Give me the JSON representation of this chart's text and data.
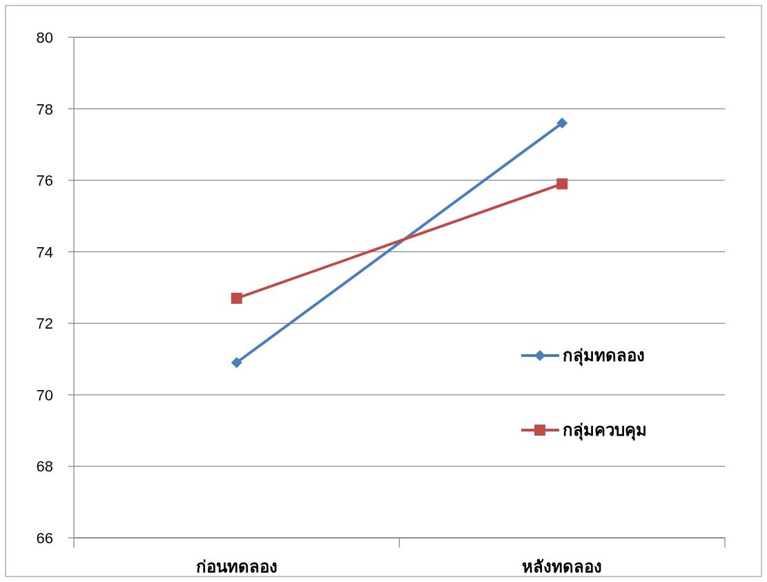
{
  "chart_data": {
    "type": "line",
    "categories": [
      "ก่อนทดลอง",
      "หลังทดลอง"
    ],
    "series": [
      {
        "name": "กลุ่มทดลอง",
        "color": "#4a7ebb",
        "values": [
          70.9,
          77.6
        ],
        "marker": "diamond"
      },
      {
        "name": "กลุ่มควบคุม",
        "color": "#be4b48",
        "values": [
          72.7,
          75.9
        ],
        "marker": "square"
      }
    ],
    "ylim": [
      66,
      80
    ],
    "yticks": [
      66,
      68,
      70,
      72,
      74,
      76,
      78,
      80
    ],
    "grid": "y",
    "legend": "right",
    "line_style": "solid"
  }
}
